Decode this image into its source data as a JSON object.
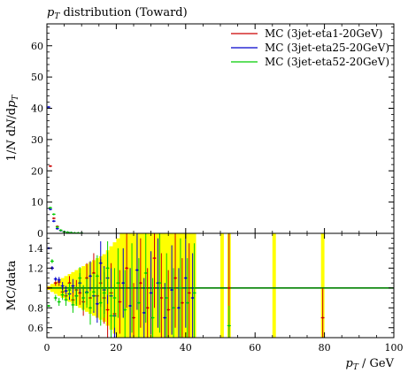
{
  "chart_data": [
    {
      "type": "scatter",
      "title": "p_T distribution (Toward)",
      "title_parts": {
        "var": "p",
        "sub": "T",
        "rest": " distribution (Toward)"
      },
      "ylabel": "1/N dN/dp_T",
      "ylim": [
        0,
        67
      ],
      "yticks": [
        "0",
        "10",
        "20",
        "30",
        "40",
        "50",
        "60"
      ],
      "legend_position": "top-right",
      "series": [
        {
          "name": "MC (3jet-eta1-20GeV)",
          "color": "#cc0000",
          "x": [
            1,
            2,
            3,
            4,
            5,
            6,
            7,
            8,
            9,
            10
          ],
          "y": [
            21.5,
            4.8,
            2.2,
            0.9,
            0.5,
            0.3,
            0.2,
            0.1,
            0.1,
            0.05
          ]
        },
        {
          "name": "MC (3jet-eta25-20GeV)",
          "color": "#0000cc",
          "x": [
            0.5,
            1,
            2,
            3,
            4,
            5,
            6,
            7,
            8,
            9,
            10
          ],
          "y": [
            40.4,
            7.7,
            3.9,
            1.5,
            0.9,
            0.5,
            0.3,
            0.2,
            0.1,
            0.1,
            0.05
          ]
        },
        {
          "name": "MC (3jet-eta52-20GeV)",
          "color": "#00cc00",
          "x": [
            1,
            2,
            3,
            4,
            5,
            6,
            7,
            8,
            9,
            10
          ],
          "y": [
            8.2,
            6.1,
            2.0,
            1.0,
            0.5,
            0.3,
            0.2,
            0.1,
            0.1,
            0.05
          ]
        }
      ]
    },
    {
      "type": "scatter",
      "ylabel": "MC/data",
      "xlabel": "p_T / GeV",
      "xlabel_parts": {
        "var": "p",
        "sub": "T",
        "rest": " / GeV"
      },
      "xlim": [
        0,
        100
      ],
      "ylim": [
        0.5,
        1.55
      ],
      "xticks": [
        "0",
        "20",
        "40",
        "60",
        "80",
        "100"
      ],
      "yticks": [
        "0.6",
        "0.8",
        "1",
        "1.2",
        "1.4"
      ],
      "reference_line": 1,
      "reference_color": "#008000",
      "band_color": "#ffff00",
      "band": [
        {
          "x": 0.5,
          "half": 0.02
        },
        {
          "x": 1.5,
          "half": 0.04
        },
        {
          "x": 2.5,
          "half": 0.06
        },
        {
          "x": 3.5,
          "half": 0.08
        },
        {
          "x": 4.5,
          "half": 0.1
        },
        {
          "x": 5.5,
          "half": 0.12
        },
        {
          "x": 6.5,
          "half": 0.14
        },
        {
          "x": 7.5,
          "half": 0.16
        },
        {
          "x": 8.5,
          "half": 0.18
        },
        {
          "x": 9.5,
          "half": 0.2
        },
        {
          "x": 10.5,
          "half": 0.22
        },
        {
          "x": 11.5,
          "half": 0.24
        },
        {
          "x": 12.5,
          "half": 0.26
        },
        {
          "x": 13.5,
          "half": 0.28
        },
        {
          "x": 14.5,
          "half": 0.3
        },
        {
          "x": 15.5,
          "half": 0.32
        },
        {
          "x": 16.5,
          "half": 0.34
        },
        {
          "x": 17.5,
          "half": 0.38
        },
        {
          "x": 18.5,
          "half": 0.42
        },
        {
          "x": 19.5,
          "half": 0.46
        },
        {
          "x": 20.5,
          "half": 0.5
        },
        {
          "x": 21.5,
          "half": 0.55
        }
      ],
      "band_full_ranges": [
        [
          22,
          43
        ],
        [
          50,
          51
        ],
        [
          52,
          53
        ],
        [
          65,
          66
        ],
        [
          79,
          80
        ]
      ],
      "series": [
        {
          "name": "MC (3jet-eta1-20GeV)",
          "color": "#cc0000",
          "points": [
            {
              "x": 0.5,
              "y": 1.0,
              "e": 0.01
            },
            {
              "x": 1.5,
              "y": 1.2,
              "e": 0.01
            },
            {
              "x": 2.5,
              "y": 1.05,
              "e": 0.03
            },
            {
              "x": 3.5,
              "y": 1.06,
              "e": 0.04
            },
            {
              "x": 4.5,
              "y": 0.96,
              "e": 0.05
            },
            {
              "x": 5.5,
              "y": 0.92,
              "e": 0.06
            },
            {
              "x": 6.5,
              "y": 1.05,
              "e": 0.07
            },
            {
              "x": 7.5,
              "y": 0.88,
              "e": 0.08
            },
            {
              "x": 8.5,
              "y": 0.98,
              "e": 0.1
            },
            {
              "x": 9.5,
              "y": 0.95,
              "e": 0.12
            },
            {
              "x": 10.5,
              "y": 0.86,
              "e": 0.14
            },
            {
              "x": 11.5,
              "y": 1.1,
              "e": 0.15
            },
            {
              "x": 12.5,
              "y": 0.9,
              "e": 0.18
            },
            {
              "x": 13.5,
              "y": 1.15,
              "e": 0.2
            },
            {
              "x": 14.5,
              "y": 0.92,
              "e": 0.22
            },
            {
              "x": 15.5,
              "y": 1.05,
              "e": 0.24
            },
            {
              "x": 16.5,
              "y": 0.9,
              "e": 0.26
            },
            {
              "x": 17.5,
              "y": 0.78,
              "e": 0.28
            },
            {
              "x": 18.5,
              "y": 0.95,
              "e": 0.3
            },
            {
              "x": 19.5,
              "y": 0.74,
              "e": 0.3
            },
            {
              "x": 21,
              "y": 0.86,
              "e": 0.32
            },
            {
              "x": 23,
              "y": 1.2,
              "e": 0.4
            },
            {
              "x": 25,
              "y": 0.7,
              "e": 0.35
            },
            {
              "x": 27,
              "y": 1.05,
              "e": 0.45
            },
            {
              "x": 29,
              "y": 0.8,
              "e": 0.4
            },
            {
              "x": 31,
              "y": 1.3,
              "e": 0.5
            },
            {
              "x": 33,
              "y": 0.9,
              "e": 0.45
            },
            {
              "x": 35,
              "y": 0.78,
              "e": 0.4
            },
            {
              "x": 37,
              "y": 1.1,
              "e": 0.5
            },
            {
              "x": 39,
              "y": 0.85,
              "e": 0.45
            },
            {
              "x": 41,
              "y": 0.95,
              "e": 0.5
            },
            {
              "x": 52.5,
              "y": 1.0,
              "e": 0.6
            },
            {
              "x": 79.5,
              "y": 0.7,
              "e": 0.3
            }
          ]
        },
        {
          "name": "MC (3jet-eta25-20GeV)",
          "color": "#0000cc",
          "points": [
            {
              "x": 0.5,
              "y": 1.4,
              "e": 0.01
            },
            {
              "x": 1.5,
              "y": 1.2,
              "e": 0.02
            },
            {
              "x": 2.5,
              "y": 1.09,
              "e": 0.02
            },
            {
              "x": 3.5,
              "y": 1.08,
              "e": 0.03
            },
            {
              "x": 4.5,
              "y": 1.02,
              "e": 0.04
            },
            {
              "x": 5.5,
              "y": 0.97,
              "e": 0.05
            },
            {
              "x": 6.5,
              "y": 0.94,
              "e": 0.06
            },
            {
              "x": 7.5,
              "y": 1.02,
              "e": 0.07
            },
            {
              "x": 8.5,
              "y": 0.92,
              "e": 0.08
            },
            {
              "x": 9.5,
              "y": 1.05,
              "e": 0.1
            },
            {
              "x": 10.5,
              "y": 0.9,
              "e": 0.12
            },
            {
              "x": 11.5,
              "y": 0.96,
              "e": 0.13
            },
            {
              "x": 12.5,
              "y": 1.12,
              "e": 0.15
            },
            {
              "x": 13.5,
              "y": 0.92,
              "e": 0.17
            },
            {
              "x": 14.5,
              "y": 0.84,
              "e": 0.19
            },
            {
              "x": 15.5,
              "y": 1.25,
              "e": 0.22
            },
            {
              "x": 16.5,
              "y": 0.98,
              "e": 0.24
            },
            {
              "x": 17.5,
              "y": 1.1,
              "e": 0.26
            },
            {
              "x": 18.5,
              "y": 0.92,
              "e": 0.28
            },
            {
              "x": 19.5,
              "y": 0.72,
              "e": 0.3
            },
            {
              "x": 22,
              "y": 1.05,
              "e": 0.35
            },
            {
              "x": 24,
              "y": 0.82,
              "e": 0.38
            },
            {
              "x": 26,
              "y": 1.18,
              "e": 0.4
            },
            {
              "x": 28,
              "y": 0.75,
              "e": 0.35
            },
            {
              "x": 30,
              "y": 0.95,
              "e": 0.42
            },
            {
              "x": 32,
              "y": 1.05,
              "e": 0.45
            },
            {
              "x": 34,
              "y": 0.7,
              "e": 0.35
            },
            {
              "x": 36,
              "y": 0.98,
              "e": 0.45
            },
            {
              "x": 38,
              "y": 0.8,
              "e": 0.4
            },
            {
              "x": 40,
              "y": 1.1,
              "e": 0.5
            },
            {
              "x": 42,
              "y": 0.9,
              "e": 0.45
            }
          ]
        },
        {
          "name": "MC (3jet-eta52-20GeV)",
          "color": "#00cc00",
          "points": [
            {
              "x": 0.5,
              "y": 0.82,
              "e": 0.01
            },
            {
              "x": 1.5,
              "y": 1.27,
              "e": 0.02
            },
            {
              "x": 2.5,
              "y": 0.9,
              "e": 0.03
            },
            {
              "x": 3.5,
              "y": 0.86,
              "e": 0.04
            },
            {
              "x": 4.5,
              "y": 0.93,
              "e": 0.05
            },
            {
              "x": 5.5,
              "y": 0.88,
              "e": 0.06
            },
            {
              "x": 6.5,
              "y": 0.98,
              "e": 0.07
            },
            {
              "x": 7.5,
              "y": 0.83,
              "e": 0.08
            },
            {
              "x": 8.5,
              "y": 0.92,
              "e": 0.1
            },
            {
              "x": 9.5,
              "y": 1.1,
              "e": 0.11
            },
            {
              "x": 10.5,
              "y": 0.9,
              "e": 0.13
            },
            {
              "x": 11.5,
              "y": 0.95,
              "e": 0.15
            },
            {
              "x": 12.5,
              "y": 0.8,
              "e": 0.17
            },
            {
              "x": 13.5,
              "y": 0.96,
              "e": 0.19
            },
            {
              "x": 14.5,
              "y": 1.12,
              "e": 0.21
            },
            {
              "x": 15.5,
              "y": 0.85,
              "e": 0.23
            },
            {
              "x": 16.5,
              "y": 0.95,
              "e": 0.25
            },
            {
              "x": 17.5,
              "y": 1.2,
              "e": 0.27
            },
            {
              "x": 18.5,
              "y": 0.72,
              "e": 0.28
            },
            {
              "x": 19.5,
              "y": 0.9,
              "e": 0.3
            },
            {
              "x": 20.5,
              "y": 1.05,
              "e": 0.35
            },
            {
              "x": 22.5,
              "y": 0.78,
              "e": 0.4
            },
            {
              "x": 24.5,
              "y": 1.0,
              "e": 0.45
            },
            {
              "x": 26.5,
              "y": 0.85,
              "e": 0.45
            },
            {
              "x": 28.5,
              "y": 1.15,
              "e": 0.5
            },
            {
              "x": 30.5,
              "y": 0.7,
              "e": 0.4
            },
            {
              "x": 32.5,
              "y": 1.05,
              "e": 0.5
            },
            {
              "x": 34.5,
              "y": 0.9,
              "e": 0.45
            },
            {
              "x": 36.5,
              "y": 0.8,
              "e": 0.4
            },
            {
              "x": 38.5,
              "y": 1.0,
              "e": 0.5
            },
            {
              "x": 40.5,
              "y": 0.85,
              "e": 0.45
            },
            {
              "x": 42.5,
              "y": 0.95,
              "e": 0.5
            },
            {
              "x": 52.5,
              "y": 0.62,
              "e": 0.2
            }
          ]
        }
      ]
    }
  ]
}
